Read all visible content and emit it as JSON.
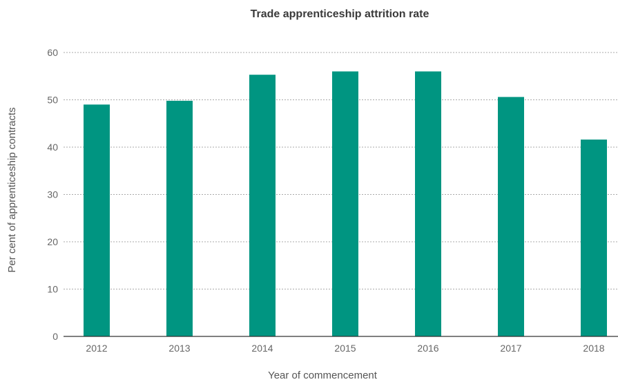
{
  "chart_data": {
    "type": "bar",
    "title": "Trade apprenticeship attrition rate",
    "xlabel": "Year of commencement",
    "ylabel": "Per cent of apprenticeship contracts",
    "categories": [
      "2012",
      "2013",
      "2014",
      "2015",
      "2016",
      "2017",
      "2018"
    ],
    "values": [
      49,
      49.8,
      55.3,
      56,
      56,
      50.6,
      41.6
    ],
    "ylim": [
      0,
      60
    ],
    "yticks": [
      0,
      10,
      20,
      30,
      40,
      50,
      60
    ],
    "grid": true,
    "bar_color": "#009581"
  }
}
